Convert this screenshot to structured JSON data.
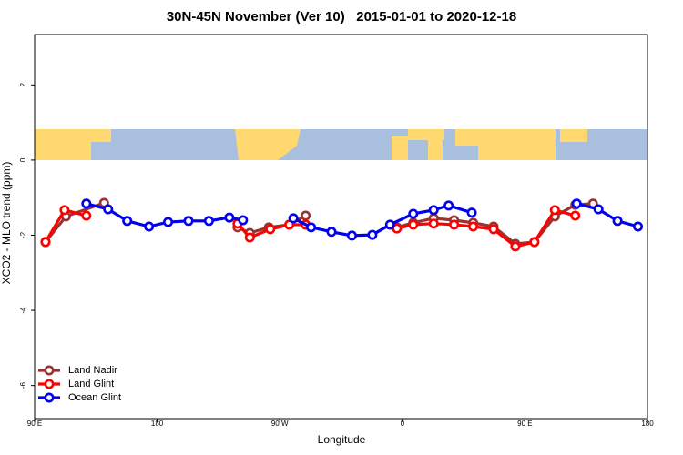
{
  "chart_data": {
    "type": "line",
    "title": "30N-45N November (Ver 10)   2015-01-01 to 2020-12-18",
    "x_label": "Longitude",
    "y_label": "XCO2 - MLO trend (ppm)",
    "xlim": [
      90,
      540
    ],
    "xticks": [
      {
        "value": 90,
        "label": "90 E"
      },
      180,
      {
        "value": 270,
        "label": "90 W"
      },
      {
        "value": 360,
        "label": "0"
      },
      {
        "value": 450,
        "label": "90 E"
      },
      {
        "value": 540,
        "label": "180"
      }
    ],
    "ylim": [
      -6.88,
      3.34
    ],
    "yticks": [
      -6,
      -4,
      -2,
      0,
      2
    ],
    "legend": "bottom-left",
    "series": [
      {
        "name": "Land Nadir",
        "color": "#993333",
        "x": [
          98,
          113,
          141,
          null,
          239,
          248,
          262,
          277,
          289,
          null,
          356,
          368,
          383,
          398,
          412,
          427,
          443,
          457,
          472,
          487,
          500
        ],
        "values": [
          -2.18,
          -1.5,
          -1.14,
          null,
          -1.79,
          -1.94,
          -1.79,
          -1.72,
          -1.48,
          null,
          -1.79,
          -1.67,
          -1.55,
          -1.6,
          -1.67,
          -1.77,
          -2.23,
          -2.18,
          -1.5,
          -1.19,
          -1.16
        ]
      },
      {
        "name": "Land Glint",
        "color": "#ff0000",
        "x": [
          98,
          112,
          128,
          null,
          239,
          248,
          263,
          277,
          289,
          null,
          356,
          368,
          383,
          398,
          412,
          427,
          443,
          457,
          472,
          487
        ],
        "values": [
          -2.18,
          -1.33,
          -1.48,
          null,
          -1.69,
          -2.06,
          -1.84,
          -1.72,
          -1.72,
          null,
          -1.82,
          -1.72,
          -1.69,
          -1.72,
          -1.77,
          -1.84,
          -2.3,
          -2.18,
          -1.33,
          -1.48
        ]
      },
      {
        "name": "Ocean Glint",
        "color": "#0000ee",
        "x": [
          128,
          144,
          158,
          174,
          188,
          203,
          218,
          233,
          243,
          null,
          280,
          293,
          308,
          323,
          338,
          351,
          368,
          383,
          394,
          411,
          null,
          488,
          504,
          518,
          533
        ],
        "values": [
          -1.16,
          -1.31,
          -1.62,
          -1.77,
          -1.65,
          -1.62,
          -1.62,
          -1.53,
          -1.6,
          null,
          -1.55,
          -1.79,
          -1.91,
          -2.01,
          -1.99,
          -1.72,
          -1.43,
          -1.33,
          -1.21,
          -1.4,
          null,
          -1.16,
          -1.31,
          -1.62,
          -1.77
        ]
      }
    ]
  }
}
